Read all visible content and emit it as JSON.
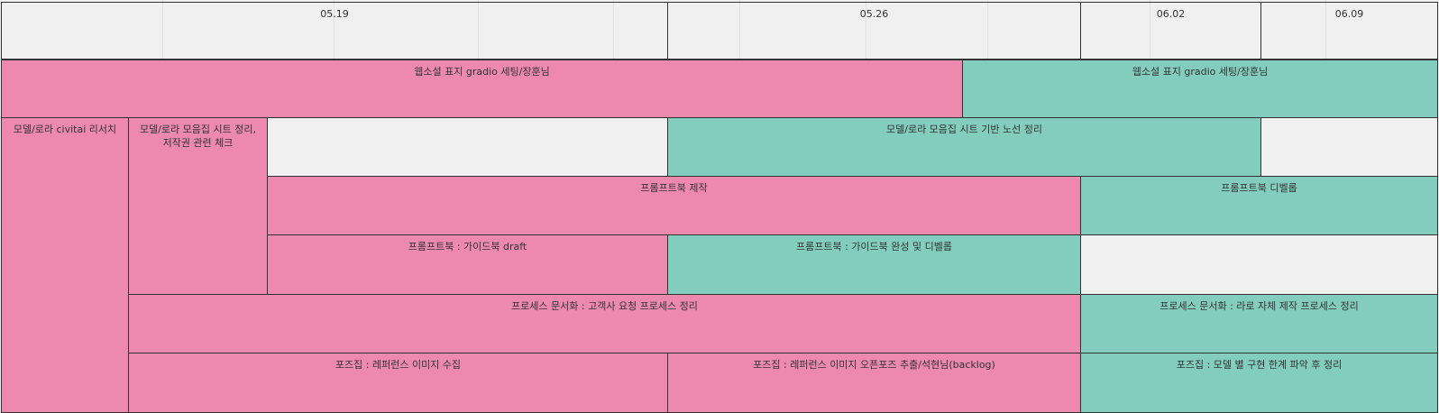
{
  "colors": {
    "pink": "#ec89ad",
    "teal": "#83cdbf",
    "empty": "#f0f0f0",
    "border": "#333333"
  },
  "header": {
    "w1": "05.19",
    "w2": "05.26",
    "w3": "06.02",
    "w4": "06.09"
  },
  "tasks": {
    "webnovel_pink": "웹소설 표지 gradio 세팅/장훈님",
    "webnovel_teal": "웹소설 표지 gradio 세팅/장훈님",
    "model_civitai": "모델/로라 civitai 리서치",
    "model_sheet": "모델/로라 모음집 시트 정리, 저작권 관련 체크",
    "model_sheet_route": "모델/로라 모음집 시트 기반 노선 정리",
    "promptbook_make": "프롬프트북 제작",
    "promptbook_develop": "프롬프트북 디벨롭",
    "promptbook_draft": "프롬프트북 : 가이드북 draft",
    "promptbook_complete": "프롬프트북 : 가이드북 완성 및 디벨롭",
    "process_client": "프로세스 문서화 : 고객사 요청 프로세스 정리",
    "process_internal": "프로세스 문서화 : 라로 자체 제작 프로세스 정리",
    "pose_collect": "포즈집 : 레퍼런스 이미지 수집",
    "pose_extract": "포즈집 : 레퍼런스 이미지 오픈포즈 추출/석현님(backlog)",
    "pose_model": "포즈집 : 모델 별 구현 한계 파악 후 정리"
  }
}
